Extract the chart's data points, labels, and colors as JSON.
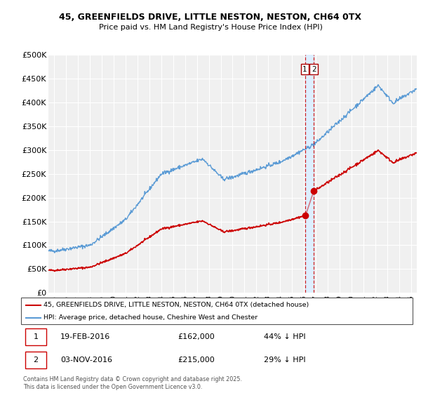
{
  "title1": "45, GREENFIELDS DRIVE, LITTLE NESTON, NESTON, CH64 0TX",
  "title2": "Price paid vs. HM Land Registry's House Price Index (HPI)",
  "ylabel_ticks": [
    "£0",
    "£50K",
    "£100K",
    "£150K",
    "£200K",
    "£250K",
    "£300K",
    "£350K",
    "£400K",
    "£450K",
    "£500K"
  ],
  "ytick_values": [
    0,
    50000,
    100000,
    150000,
    200000,
    250000,
    300000,
    350000,
    400000,
    450000,
    500000
  ],
  "ylim": [
    0,
    500000
  ],
  "xlim_start": 1994.5,
  "xlim_end": 2025.5,
  "hpi_color": "#5b9bd5",
  "price_color": "#cc0000",
  "shade_color": "#ddeeff",
  "background_color": "#f0f0f0",
  "grid_color": "#ffffff",
  "legend_label_red": "45, GREENFIELDS DRIVE, LITTLE NESTON, NESTON, CH64 0TX (detached house)",
  "legend_label_blue": "HPI: Average price, detached house, Cheshire West and Chester",
  "annotation1_label": "1",
  "annotation1_date": "19-FEB-2016",
  "annotation1_price": "£162,000",
  "annotation1_hpi": "44% ↓ HPI",
  "annotation2_label": "2",
  "annotation2_date": "03-NOV-2016",
  "annotation2_price": "£215,000",
  "annotation2_hpi": "29% ↓ HPI",
  "footer": "Contains HM Land Registry data © Crown copyright and database right 2025.\nThis data is licensed under the Open Government Licence v3.0.",
  "purchase1_x": 2016.13,
  "purchase1_y": 162000,
  "purchase2_x": 2016.84,
  "purchase2_y": 215000
}
